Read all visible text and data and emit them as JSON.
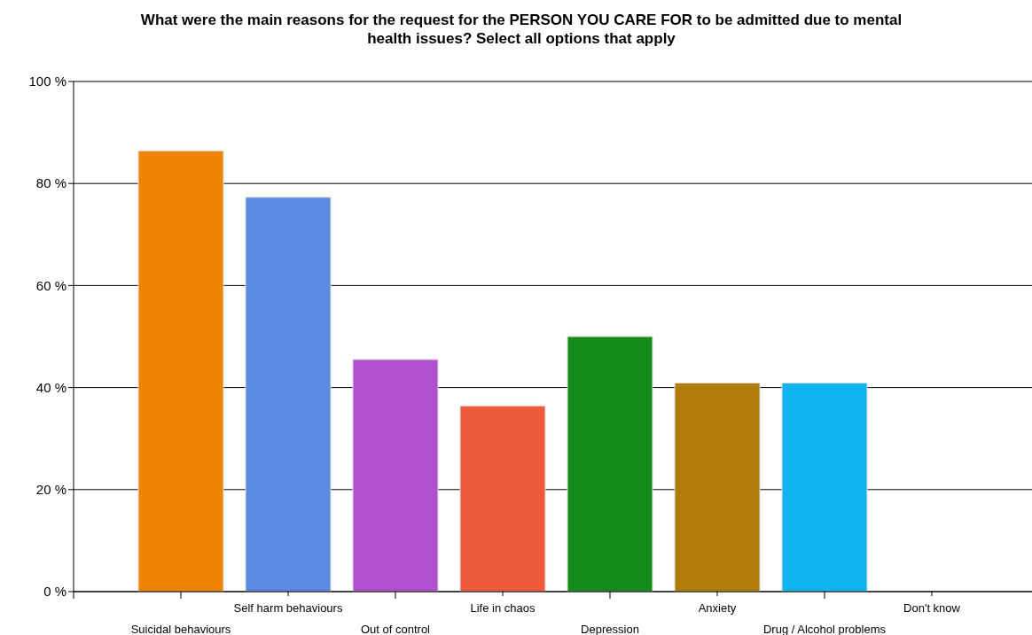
{
  "chart_data": {
    "type": "bar",
    "title": "What were the main reasons for the request for the PERSON YOU CARE FOR to be admitted due to mental health issues? Select all options that apply",
    "categories": [
      "Suicidal behaviours",
      "Self harm behaviours",
      "Out of control",
      "Life in chaos",
      "Depression",
      "Anxiety",
      "Drug / Alcohol problems",
      "Don't know"
    ],
    "values": [
      86.4,
      77.3,
      45.5,
      36.4,
      50,
      40.9,
      40.9,
      0
    ],
    "colors": [
      "#f08400",
      "#5b8ae0",
      "#b04fd0",
      "#f05a3c",
      "#138a1a",
      "#b07c0a",
      "#10b4ee",
      "#888888"
    ],
    "ylim": [
      0,
      100
    ],
    "yticks": [
      {
        "value": 0,
        "label": "0 %"
      },
      {
        "value": 20,
        "label": "20 %"
      },
      {
        "value": 40,
        "label": "40 %"
      },
      {
        "value": 60,
        "label": "60 %"
      },
      {
        "value": 80,
        "label": "80 %"
      },
      {
        "value": 100,
        "label": "100 %"
      }
    ],
    "grid": "y"
  }
}
